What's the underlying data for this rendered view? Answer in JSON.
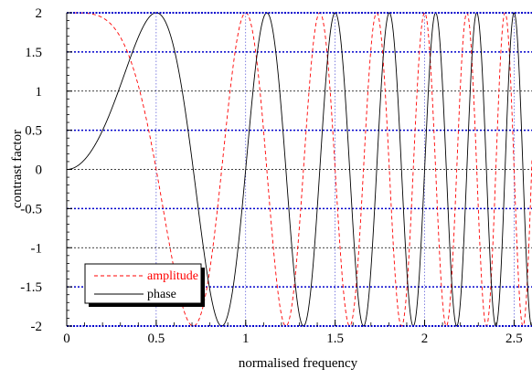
{
  "chart_data": {
    "type": "line",
    "title": "",
    "xlabel": "normalised frequency",
    "ylabel": "contrast factor",
    "xlim": [
      0,
      2.6
    ],
    "ylim": [
      -2,
      2
    ],
    "x_ticks": [
      0,
      0.5,
      1,
      1.5,
      2,
      2.5
    ],
    "x_tick_labels": [
      "0",
      "0.5",
      "1",
      "1.5",
      "2",
      "2.5"
    ],
    "y_ticks": [
      -2,
      -1.5,
      -1,
      -0.5,
      0,
      0.5,
      1,
      1.5,
      2
    ],
    "y_tick_labels": [
      "-2",
      "-1.5",
      "-1",
      "-0.5",
      "0",
      "0.5",
      "1",
      "1.5",
      "2"
    ],
    "grid": true,
    "legend_position": "bottom-left",
    "series": [
      {
        "name": "amplitude",
        "color": "#ff0000",
        "dash": "dashed",
        "formula": "2*cos(2*pi*x^2)",
        "x": [
          0,
          0.25,
          0.5,
          0.55,
          0.75,
          1.0,
          1.25,
          1.45,
          1.65,
          1.8,
          2.0,
          2.12,
          2.24,
          2.35,
          2.45,
          2.55
        ],
        "y": [
          2,
          1.85,
          0,
          -0.3,
          -2,
          2,
          -1.5,
          1.99,
          -0.2,
          -2,
          2,
          -0.5,
          0.7,
          -1.9,
          1.8,
          -1.0
        ]
      },
      {
        "name": "phase",
        "color": "#000000",
        "dash": "solid",
        "formula": "2*sin(2*pi*x^2)",
        "x": [
          0,
          0.25,
          0.5,
          0.61,
          0.75,
          1.0,
          1.25,
          1.4,
          1.61,
          1.8,
          1.94,
          2.15,
          2.28,
          2.4,
          2.55
        ],
        "y": [
          0,
          0.76,
          2,
          1.8,
          0,
          0,
          -2,
          -0.5,
          2,
          0.3,
          -2,
          2,
          0.4,
          -2,
          2
        ]
      }
    ]
  }
}
